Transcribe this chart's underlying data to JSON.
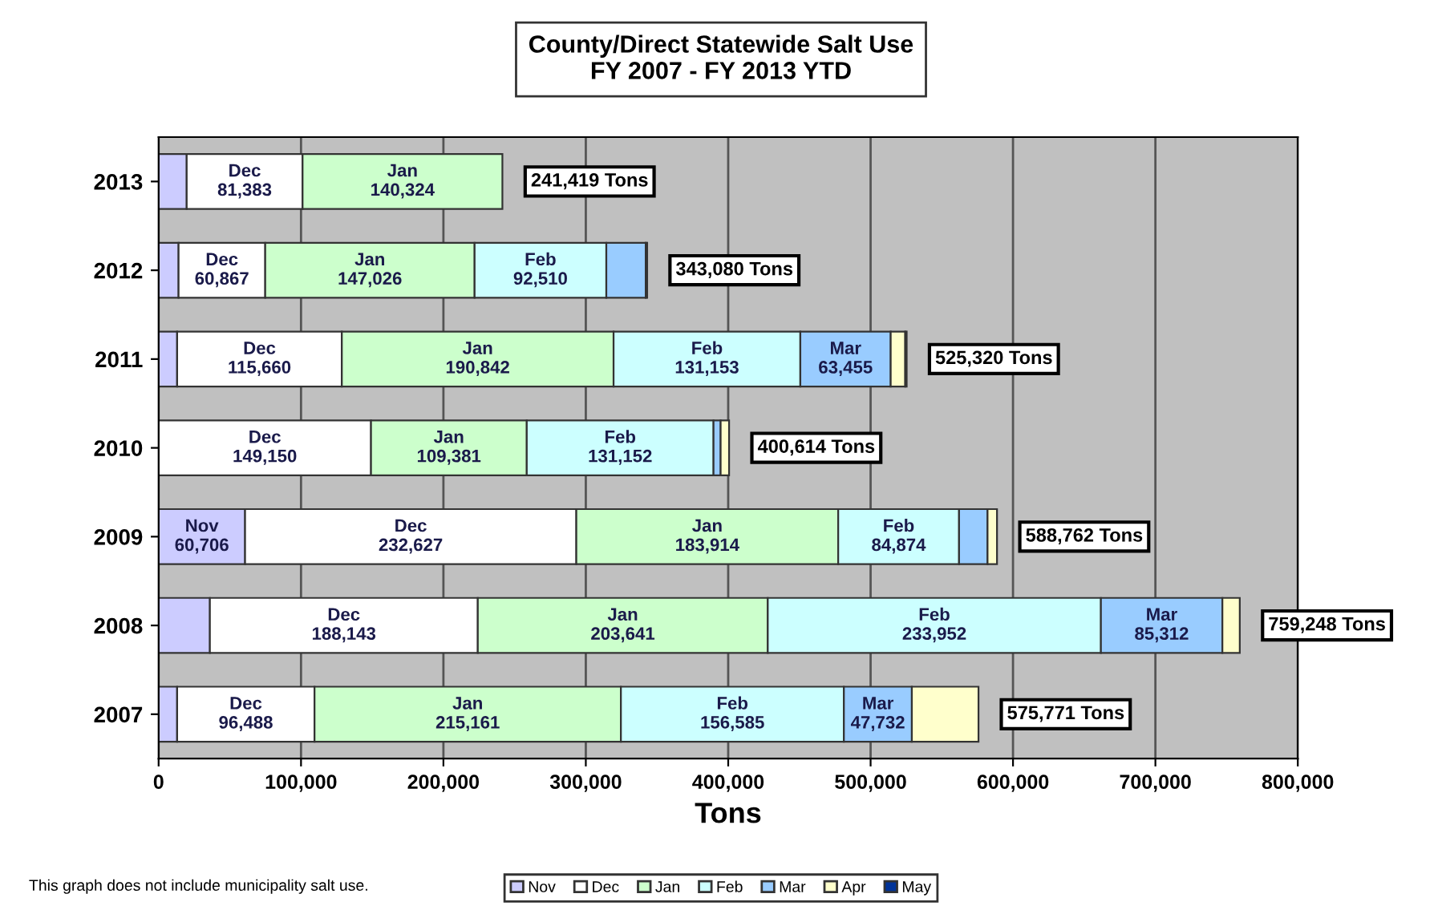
{
  "chart_data": {
    "type": "bar",
    "orientation": "horizontal",
    "stacked": true,
    "title": "County/Direct Statewide Salt Use\nFY 2007 - FY 2013 YTD",
    "xlabel": "Tons",
    "categories": [
      "2013",
      "2012",
      "2011",
      "2010",
      "2009",
      "2008",
      "2007"
    ],
    "series": [
      {
        "name": "Nov",
        "color": "#ccccff",
        "values": [
          19712,
          14000,
          13000,
          null,
          60706,
          36000,
          13000
        ],
        "value_labels": [
          null,
          null,
          null,
          null,
          "60,706",
          null,
          null
        ]
      },
      {
        "name": "Dec",
        "color": "#ffffff",
        "values": [
          81383,
          60867,
          115660,
          149150,
          232627,
          188143,
          96488
        ],
        "value_labels": [
          "81,383",
          "60,867",
          "115,660",
          "149,150",
          "232,627",
          "188,143",
          "96,488"
        ]
      },
      {
        "name": "Jan",
        "color": "#ccffcc",
        "values": [
          140324,
          147026,
          190842,
          109381,
          183914,
          203641,
          215161
        ],
        "value_labels": [
          "140,324",
          "147,026",
          "190,842",
          "109,381",
          "183,914",
          "203,641",
          "215,161"
        ]
      },
      {
        "name": "Feb",
        "color": "#ccffff",
        "values": [
          null,
          92510,
          131153,
          131152,
          84874,
          233952,
          156585
        ],
        "value_labels": [
          null,
          "92,510",
          "131,153",
          "131,152",
          "84,874",
          "233,952",
          "156,585"
        ]
      },
      {
        "name": "Mar",
        "color": "#99ccff",
        "values": [
          null,
          27677,
          63455,
          5000,
          20000,
          85312,
          47732
        ],
        "value_labels": [
          null,
          null,
          "63,455",
          null,
          null,
          "85,312",
          "47,732"
        ]
      },
      {
        "name": "Apr",
        "color": "#ffffcc",
        "values": [
          null,
          null,
          10210,
          5931,
          6641,
          12200,
          46805
        ],
        "value_labels": [
          null,
          null,
          null,
          null,
          null,
          null,
          null
        ]
      },
      {
        "name": "May",
        "color": "#003399",
        "values": [
          null,
          1000,
          1000,
          null,
          null,
          null,
          null
        ],
        "value_labels": [
          null,
          null,
          null,
          null,
          null,
          null,
          null
        ]
      }
    ],
    "totals": [
      "241,419 Tons",
      "343,080 Tons",
      "525,320 Tons",
      "400,614 Tons",
      "588,762 Tons",
      "759,248 Tons",
      "575,771 Tons"
    ],
    "xlim": [
      0,
      800000
    ],
    "xticks": [
      0,
      {
        "value": 100000,
        "label": "100,000"
      },
      {
        "value": 200000,
        "label": "200,000"
      },
      {
        "value": 300000,
        "label": "300,000"
      },
      {
        "value": 400000,
        "label": "400,000"
      },
      {
        "value": 500000,
        "label": "500,000"
      },
      {
        "value": 600000,
        "label": "600,000"
      },
      {
        "value": 700000,
        "label": "700,000"
      },
      {
        "value": 800000,
        "label": "800,000"
      }
    ],
    "grid": "x",
    "legend": "bottom",
    "annotations": [
      "This graph does not include municipality salt use."
    ]
  }
}
